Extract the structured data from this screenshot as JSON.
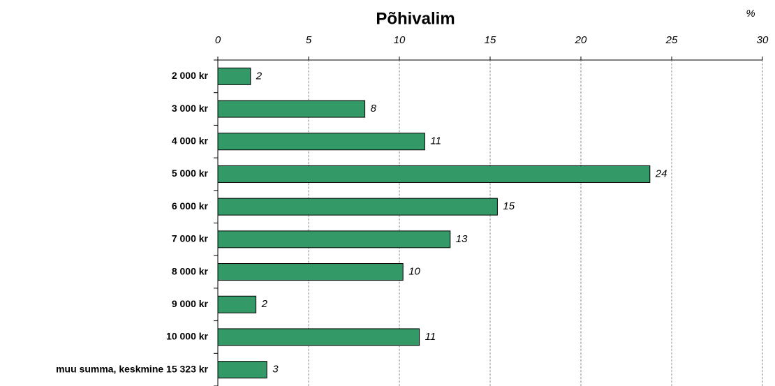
{
  "chart_data": {
    "type": "bar",
    "orientation": "horizontal",
    "title": "Põhivalim",
    "x_axis_label": "%",
    "categories": [
      "2 000 kr",
      "3 000 kr",
      "4 000 kr",
      "5 000 kr",
      "6 000 kr",
      "7 000 kr",
      "8 000 kr",
      "9 000 kr",
      "10 000 kr",
      "muu summa, keskmine 15 323 kr"
    ],
    "values": [
      1.8,
      8.1,
      11.4,
      23.8,
      15.4,
      12.8,
      10.2,
      2.1,
      11.1,
      2.7
    ],
    "value_labels": [
      "2",
      "8",
      "11",
      "24",
      "15",
      "13",
      "10",
      "2",
      "11",
      "3"
    ],
    "color": "#339966",
    "xlim": [
      0,
      30
    ],
    "xticks": [
      0,
      5,
      10,
      15,
      20,
      25,
      30
    ],
    "grid": true
  }
}
